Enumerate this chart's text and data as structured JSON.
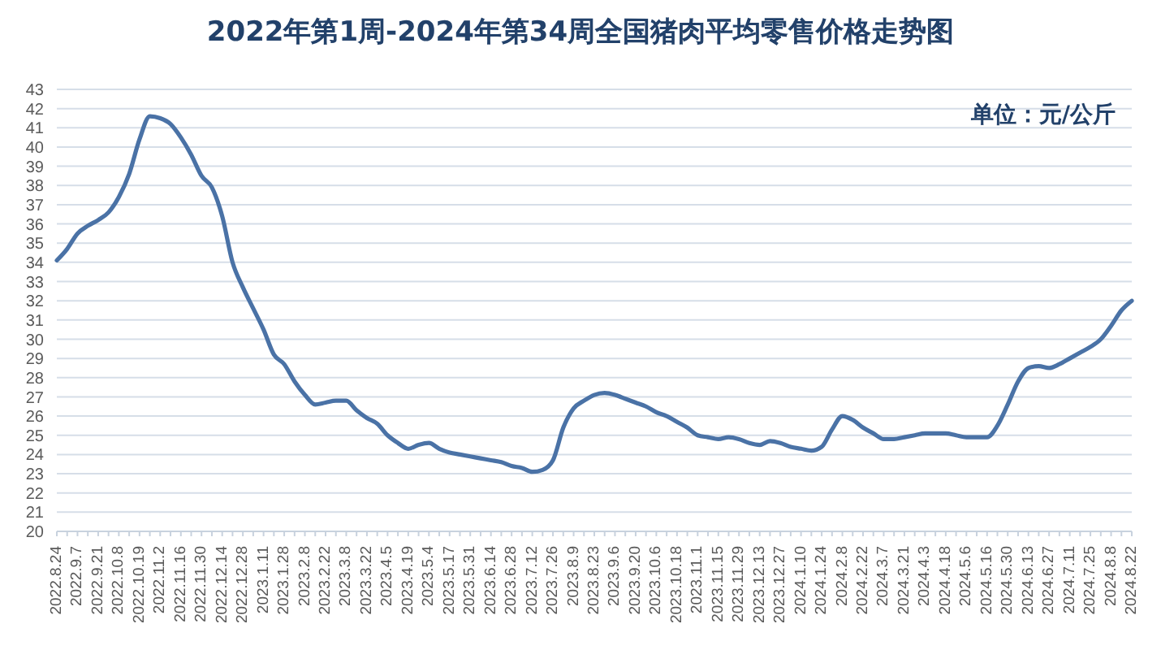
{
  "chart_data": {
    "type": "line",
    "title": "2022年第1周-2024年第34周全国猪肉平均零售价格走势图",
    "annotations": [
      "单位：元/公斤"
    ],
    "categories": [
      "2022.8.24",
      null,
      "2022.9.7",
      null,
      "2022.9.21",
      null,
      "2022.10.8",
      null,
      "2022.10.19",
      null,
      "2022.11.2",
      null,
      "2022.11.16",
      null,
      "2022.11.30",
      null,
      "2022.12.14",
      null,
      "2022.12.28",
      null,
      "2023.1.11",
      null,
      "2023.1.28",
      null,
      "2023.2.8",
      null,
      "2023.2.22",
      null,
      "2023.3.8",
      null,
      "2023.3.22",
      null,
      "2023.4.5",
      null,
      "2023.4.19",
      null,
      "2023.5.4",
      null,
      "2023.5.17",
      null,
      "2023.5.31",
      null,
      "2023.6.14",
      null,
      "2023.6.28",
      null,
      "2023.7.12",
      null,
      "2023.7.26",
      null,
      "2023.8.9",
      null,
      "2023.8.23",
      null,
      "2023.9.6",
      null,
      "2023.9.20",
      null,
      "2023.10.6",
      null,
      "2023.10.18",
      null,
      "2023.11.1",
      null,
      "2023.11.15",
      null,
      "2023.11.29",
      null,
      "2023.12.13",
      null,
      "2023.12.27",
      null,
      "2024.1.10",
      null,
      "2024.1.24",
      null,
      "2024.2.8",
      null,
      "2024.2.22",
      null,
      "2024.3.7",
      null,
      "2024.3.21",
      null,
      "2024.4.3",
      null,
      "2024.4.18",
      null,
      "2024.5.6",
      null,
      "2024.5.16",
      null,
      "2024.5.30",
      null,
      "2024.6.13",
      null,
      "2024.6.27",
      null,
      "2024.7.11",
      null,
      "2024.7.25",
      null,
      "2024.8.8",
      null,
      "2024.8.22"
    ],
    "values": [
      34.1,
      34.7,
      35.5,
      35.9,
      36.2,
      36.6,
      37.4,
      38.6,
      40.4,
      41.6,
      41.5,
      41.2,
      40.5,
      39.6,
      38.5,
      37.9,
      36.4,
      34.0,
      32.7,
      31.6,
      30.5,
      29.2,
      28.7,
      27.8,
      27.1,
      26.6,
      26.7,
      26.8,
      26.8,
      26.3,
      25.9,
      25.6,
      25.0,
      24.6,
      24.3,
      24.5,
      24.6,
      24.3,
      24.1,
      24.0,
      23.9,
      23.8,
      23.7,
      23.6,
      23.4,
      23.3,
      23.1,
      23.2,
      23.7,
      25.4,
      26.4,
      26.8,
      27.1,
      27.2,
      27.1,
      26.9,
      26.7,
      26.5,
      26.2,
      26.0,
      25.7,
      25.4,
      25.0,
      24.9,
      24.8,
      24.9,
      24.8,
      24.6,
      24.5,
      24.7,
      24.6,
      24.4,
      24.3,
      24.2,
      24.4,
      25.3,
      26.0,
      25.8,
      25.4,
      25.1,
      24.8,
      24.8,
      24.9,
      25.0,
      25.1,
      25.1,
      25.1,
      25.0,
      24.9,
      24.9,
      24.9,
      25.5,
      26.6,
      27.8,
      28.5,
      28.6,
      28.5,
      28.7,
      29.0,
      29.3,
      29.6,
      30.0,
      30.7,
      31.5,
      32.0
    ],
    "color": "#4a72a6",
    "ylim": [
      20,
      43
    ],
    "yticks": [
      20,
      21,
      22,
      23,
      24,
      25,
      26,
      27,
      28,
      29,
      30,
      31,
      32,
      33,
      34,
      35,
      36,
      37,
      38,
      39,
      40,
      41,
      42,
      43
    ],
    "grid": "y",
    "legend": false,
    "marker": "none",
    "line_style": "solid"
  }
}
